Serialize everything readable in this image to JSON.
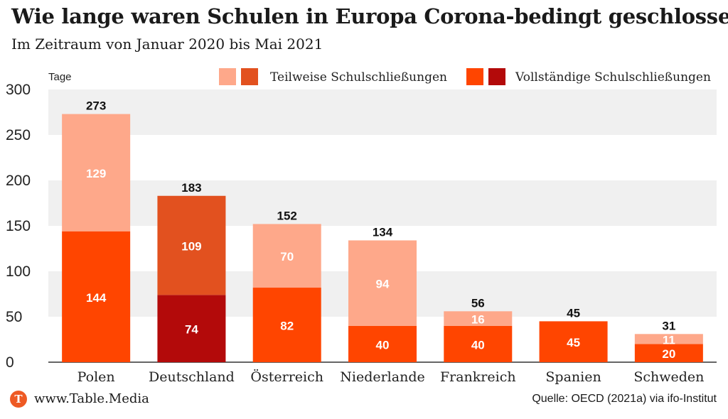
{
  "title": "Wie lange waren Schulen in Europa Corona-bedingt geschlossen?",
  "subtitle": "Im Zeitraum von Januar 2020 bis Mai 2021",
  "footer": {
    "logo_letter": "T",
    "site": "www.Table.Media",
    "source": "Quelle: OECD (2021a) via ifo-Institut"
  },
  "colors": {
    "partial_light": "#fea88a",
    "partial_dark": "#e2511f",
    "full_light": "#ff4500",
    "full_dark": "#b30a0a",
    "grid_band": "#f0f0f0"
  },
  "chart_data": {
    "type": "bar",
    "stacked": true,
    "ylabel": "Tage",
    "ylim": [
      0,
      300
    ],
    "yticks": [
      0,
      50,
      100,
      150,
      200,
      250,
      300
    ],
    "legend": [
      {
        "label": "Teilweise Schulschließungen",
        "swatches": [
          "partial_light",
          "partial_dark"
        ]
      },
      {
        "label": "Vollständige Schulschließungen",
        "swatches": [
          "full_light",
          "full_dark"
        ]
      }
    ],
    "categories": [
      "Polen",
      "Deutschland",
      "Österreich",
      "Niederlande",
      "Frankreich",
      "Spanien",
      "Schweden"
    ],
    "highlight": "Deutschland",
    "series": [
      {
        "name": "Vollständige Schulschließungen",
        "values": [
          144,
          74,
          82,
          40,
          40,
          45,
          20
        ]
      },
      {
        "name": "Teilweise Schulschließungen",
        "values": [
          129,
          109,
          70,
          94,
          16,
          0,
          11
        ]
      }
    ],
    "totals": [
      273,
      183,
      152,
      134,
      56,
      45,
      31
    ]
  }
}
